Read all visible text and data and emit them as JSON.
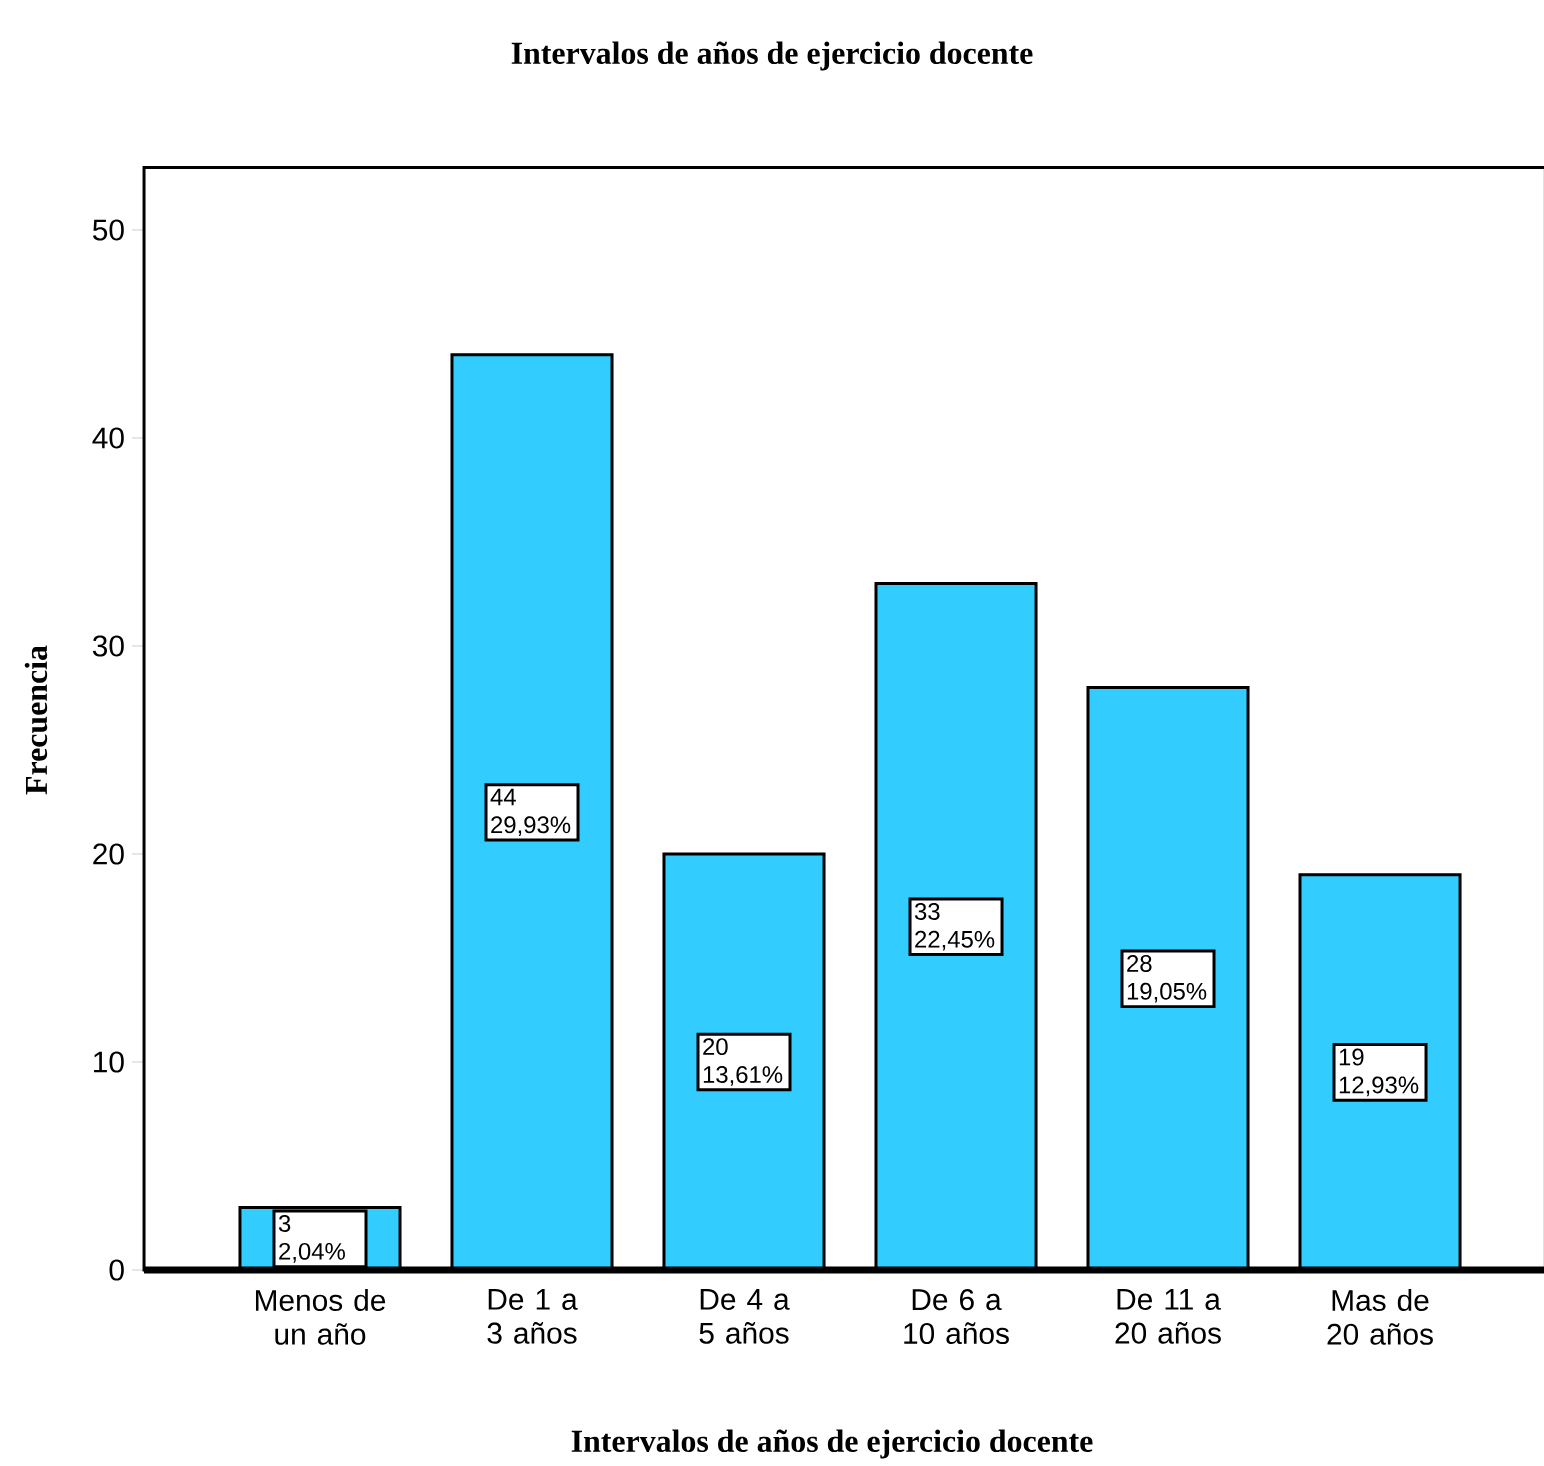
{
  "chart_data": {
    "type": "bar",
    "title": "Intervalos de años de ejercicio docente",
    "xlabel": "Intervalos de años de ejercicio docente",
    "ylabel": "Frecuencia",
    "categories": [
      "Menos de un año",
      "De 1 a 3 años",
      "De 4 a 5 años",
      "De 6 a 10 años",
      "De 11 a 20 años",
      "Mas de 20 años"
    ],
    "values": [
      3,
      44,
      20,
      33,
      28,
      19
    ],
    "value_labels": [
      "3 2,04%",
      "44 29,93%",
      "20 13,61%",
      "33 22,45%",
      "28 19,05%",
      "19 12,93%"
    ],
    "color": "#33ccff",
    "ylim": [
      0,
      53
    ],
    "yticks": [
      0,
      10,
      20,
      30,
      40,
      50
    ],
    "grid": false
  }
}
